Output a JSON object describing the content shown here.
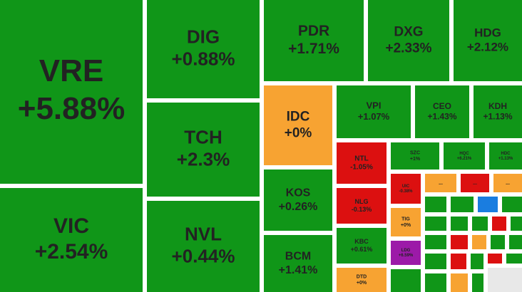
{
  "tiles": [
    {
      "ticker": "VRE",
      "change": "+5.88%",
      "color": "#109618"
    },
    {
      "ticker": "VIC",
      "change": "+2.54%",
      "color": "#109618"
    },
    {
      "ticker": "DIG",
      "change": "+0.88%",
      "color": "#109618"
    },
    {
      "ticker": "TCH",
      "change": "+2.3%",
      "color": "#109618"
    },
    {
      "ticker": "NVL",
      "change": "+0.44%",
      "color": "#109618"
    },
    {
      "ticker": "PDR",
      "change": "+1.71%",
      "color": "#109618"
    },
    {
      "ticker": "DXG",
      "change": "+2.33%",
      "color": "#109618"
    },
    {
      "ticker": "HDG",
      "change": "+2.12%",
      "color": "#109618"
    },
    {
      "ticker": "IDC",
      "change": "+0%",
      "color": "#f7a332"
    },
    {
      "ticker": "KOS",
      "change": "+0.26%",
      "color": "#109618"
    },
    {
      "ticker": "BCM",
      "change": "+1.41%",
      "color": "#109618"
    },
    {
      "ticker": "VPI",
      "change": "+1.07%",
      "color": "#109618"
    },
    {
      "ticker": "CEO",
      "change": "+1.43%",
      "color": "#109618"
    },
    {
      "ticker": "KDH",
      "change": "+1.13%",
      "color": "#109618"
    },
    {
      "ticker": "NTL",
      "change": "-1.05%",
      "color": "#dc1010"
    },
    {
      "ticker": "NLG",
      "change": "-0.13%",
      "color": "#dc1010"
    },
    {
      "ticker": "KBC",
      "change": "+0.61%",
      "color": "#109618"
    },
    {
      "ticker": "DTD",
      "change": "+0%",
      "color": "#f7a332"
    },
    {
      "ticker": "SZC",
      "change": "+1%",
      "color": "#109618"
    },
    {
      "ticker": "HQC",
      "change": "+6.21%",
      "color": "#109618"
    },
    {
      "ticker": "HDC",
      "change": "+1.13%",
      "color": "#109618"
    },
    {
      "ticker": "UIC",
      "change": "-0.38%",
      "color": "#dc1010"
    },
    {
      "ticker": "TIG",
      "change": "+0%",
      "color": "#f7a332"
    },
    {
      "ticker": "LDG",
      "change": "+6.59%",
      "color": "#9c1aa8"
    }
  ],
  "small_tiles": [
    {
      "label": "...",
      "color": "#f7a332"
    },
    {
      "label": "...",
      "color": "#dc1010"
    },
    {
      "label": "...",
      "color": "#f7a332"
    }
  ]
}
